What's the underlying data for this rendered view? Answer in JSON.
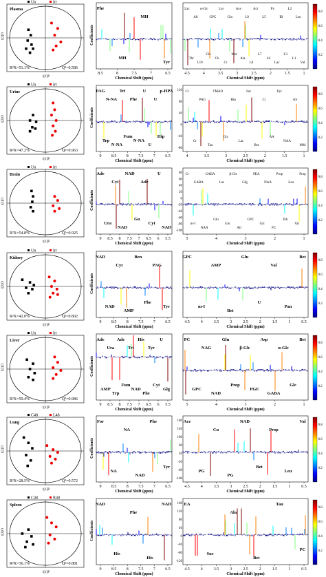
{
  "colorbar": {
    "ticks": [
      "0.8",
      "0.6",
      "0.4",
      "0.2"
    ]
  },
  "rows": [
    {
      "id": "plasma",
      "score": {
        "tissue": "Plasma",
        "group_left": "Un",
        "group_right": "Irr",
        "r2x": "R²X=51.1%",
        "q2": "Q²=0.586",
        "xlabel": "t[1]P",
        "ylabel": "t[2]O"
      },
      "left": {
        "ticks": [
          "8.5",
          "8",
          "7.5",
          "7",
          "6.5"
        ],
        "xlabel": "Chemical Shift (ppm)",
        "ylabel": "Coefficients",
        "yticks": [],
        "peaks": [
          "Phe",
          "MH",
          "MH",
          "Tyr"
        ]
      },
      "right": {
        "ticks": [
          "4.5",
          "4",
          "3.5",
          "3",
          "2.5",
          "2",
          "1.5",
          "1"
        ],
        "xlabel": "Chemical Shift (ppm)",
        "yticks": [],
        "peaks": [
          "Lac",
          "Thr",
          "All",
          "L10",
          "α-Glc",
          "Glc",
          "GPC",
          "Ch",
          "Lys",
          "Cr",
          "Gln",
          "Met",
          "Ace",
          "Ala",
          "L9",
          "L8",
          "Act",
          "L7",
          "L5",
          "L6",
          "Py",
          "Lac",
          "IB",
          "L3",
          "L2",
          "L1",
          "Leu",
          "Val"
        ]
      }
    },
    {
      "id": "urine",
      "score": {
        "tissue": "Urine",
        "group_left": "Un",
        "group_right": "Irr",
        "r2x": "R²X=47.2%",
        "q2": "Q²=0.963",
        "xlabel": "t[1]P",
        "ylabel": "t[2]O"
      },
      "left": {
        "ticks": [
          "9",
          "8.5",
          "8",
          "7.5",
          "7",
          "6.5"
        ],
        "xlabel": "Chemical Shift (ppm)",
        "ylabel": "Coefficients",
        "yticks": [],
        "peaks": [
          "PAG",
          "Trp",
          "N-NA",
          "N-NA",
          "Tri",
          "Fum",
          "Phe",
          "N-NA",
          "U",
          "U",
          "U",
          "Hip",
          "p-HPA"
        ]
      },
      "right": {
        "ticks": [
          "4",
          "3.5",
          "3",
          "2.5",
          "2",
          "1.5",
          "1"
        ],
        "xlabel": "Chemical Shift (ppm)",
        "yticks": [
          "120",
          "80",
          "40",
          "0",
          "-40",
          "-80"
        ],
        "peaks": [
          "Cr",
          "Cr",
          "PAG",
          "Tau",
          "TMAO",
          "Gly",
          "Hip",
          "Lac",
          "Sur",
          "Bet",
          "Ci",
          "AA",
          "Pyr",
          "NAA",
          "AS",
          "MM"
        ]
      }
    },
    {
      "id": "brain",
      "score": {
        "tissue": "Brain",
        "group_left": "Un",
        "group_right": "Irr",
        "r2x": "R²X=54.8%",
        "q2": "Q²=0.925",
        "xlabel": "t[1]P",
        "ylabel": "t[2]O"
      },
      "left": {
        "ticks": [
          "9",
          "8.5",
          "8",
          "7.5",
          "7",
          "6.5",
          "6",
          "5.5"
        ],
        "xlabel": "Chemical Shift (ppm)",
        "ylabel": "Coefficients",
        "yticks": [],
        "peaks": [
          "Ade",
          "Ura",
          "Cyt",
          "NAD",
          "NAD",
          "Gu",
          "Ade",
          "Cyt",
          "U",
          "NAD"
        ]
      },
      "right": {
        "ticks": [
          "5",
          "4",
          "3",
          "2",
          "1"
        ],
        "xlabel": "Chemical Shift (ppm)",
        "yticks": [
          "80",
          "60",
          "40",
          "20",
          "0",
          "-20",
          "-40",
          "-60",
          "-80",
          "-100"
        ],
        "peaks": [
          "Cr",
          "m-I",
          "GABA",
          "NAA",
          "GABA",
          "Glu",
          "Lac",
          "Glu",
          "β-Glc",
          "All",
          "Glg",
          "GPC",
          "PEA",
          "Glc",
          "NAA",
          "PC",
          "Prop",
          "Eth",
          "Leu",
          "Val",
          "Prop"
        ]
      }
    },
    {
      "id": "kidney",
      "score": {
        "tissue": "Kidney",
        "group_left": "Un",
        "group_right": "Irr",
        "r2x": "R²X=42.0%",
        "q2": "Q²=0.802",
        "xlabel": "t[1]P",
        "ylabel": "t[2]O"
      },
      "left": {
        "ticks": [
          "9",
          "8.5",
          "8",
          "7.5",
          "7",
          "6.5"
        ],
        "xlabel": "Chemical Shift (ppm)",
        "ylabel": "Coefficients",
        "yticks": [],
        "peaks": [
          "NAD",
          "NAD",
          "Cyt",
          "AMP",
          "Ben",
          "Phe",
          "PAG",
          "Tyr"
        ]
      },
      "right": {
        "ticks": [
          "4.5",
          "4",
          "3.5",
          "3",
          "2.5",
          "2",
          "1.5",
          "1",
          "0.5"
        ],
        "xlabel": "Chemical Shift (ppm)",
        "yticks": [],
        "peaks": [
          "GPC",
          "m-I",
          "AMP",
          "Bet",
          "Glu",
          "U",
          "Val",
          "Pan",
          "Bet"
        ]
      }
    },
    {
      "id": "liver",
      "score": {
        "tissue": "Liver",
        "group_left": "Un",
        "group_right": "Irr",
        "r2x": "R²X=59.4%",
        "q2": "Q²=0.986",
        "xlabel": "t[1]P",
        "ylabel": "t[2]O"
      },
      "left": {
        "ticks": [
          "9",
          "8.5",
          "8",
          "7.5",
          "7",
          "6.5",
          "6",
          "5.5"
        ],
        "xlabel": "Chemical Shift (ppm)",
        "ylabel": "Coefficients",
        "yticks": [],
        "peaks": [
          "Ade",
          "AMP",
          "Ura",
          "Trp",
          "Ade",
          "Fum",
          "Tri",
          "NAD",
          "His",
          "Phe",
          "Tyr",
          "Cyt",
          "U",
          "Glg"
        ]
      },
      "right": {
        "ticks": [
          "5",
          "4",
          "3",
          "2",
          "1"
        ],
        "xlabel": "Chemical Shift (ppm)",
        "yticks": [],
        "peaks": [
          "PC",
          "GPC",
          "NAG",
          "NAD",
          "Glu",
          "Prop",
          "β-Glc",
          "PGE",
          "Asp",
          "GABA",
          "α-Glc",
          "Glc",
          "Bet"
        ]
      }
    },
    {
      "id": "lung",
      "score": {
        "tissue": "Lung",
        "group_left": "C48",
        "group_right": "L48",
        "r2x": "R²X=28.5%",
        "q2": "Q²=0.572",
        "xlabel": "t[1]P",
        "ylabel": "t[2]O"
      },
      "left": {
        "ticks": [
          "9",
          "8.5",
          "8",
          "7.5",
          "7",
          "6.5"
        ],
        "xlabel": "Chemical Shift (ppm)",
        "ylabel": "Coefficients",
        "yticks": [],
        "peaks": [
          "For",
          "NA",
          "NA",
          "NAD",
          "Phe",
          "Tyr"
        ]
      },
      "right": {
        "ticks": [
          "4.5",
          "4",
          "3.5",
          "3",
          "2.5",
          "2",
          "1.5",
          "1",
          "0.5"
        ],
        "xlabel": "Chemical Shift (ppm)",
        "yticks": [
          "180",
          "140",
          "100",
          "60",
          "20",
          "-20",
          "-60",
          "-100"
        ],
        "peaks": [
          "Ace",
          "PG",
          "Cu",
          "PG",
          "NAD",
          "Bet",
          "Prop",
          "Leu",
          "Val"
        ]
      }
    },
    {
      "id": "spleen",
      "score": {
        "tissue": "Spleen",
        "group_left": "C48",
        "group_right": "R48",
        "r2x": "R²X=36.1%",
        "q2": "Q²=0.881",
        "xlabel": "t[1]P",
        "ylabel": "t[2]O"
      },
      "left": {
        "ticks": [
          "9",
          "8.5",
          "8",
          "7.5",
          "7",
          "6.5"
        ],
        "xlabel": "Chemical Shift (ppm)",
        "ylabel": "Coefficients",
        "yticks": [],
        "peaks": [
          "NAD",
          "His",
          "Phe",
          "His",
          "NAD"
        ]
      },
      "right": {
        "ticks": [
          "4.5",
          "4",
          "3.5",
          "3",
          "2.5",
          "2",
          "1.5",
          "1",
          "0.5"
        ],
        "xlabel": "Chemical Shift (ppm)",
        "yticks": [
          "160",
          "120",
          "80",
          "40",
          "0",
          "-40",
          "-80",
          "-120"
        ],
        "peaks": [
          "EA",
          "Suc",
          "Ala",
          "Bet",
          "Tau",
          "PC"
        ]
      }
    }
  ]
}
